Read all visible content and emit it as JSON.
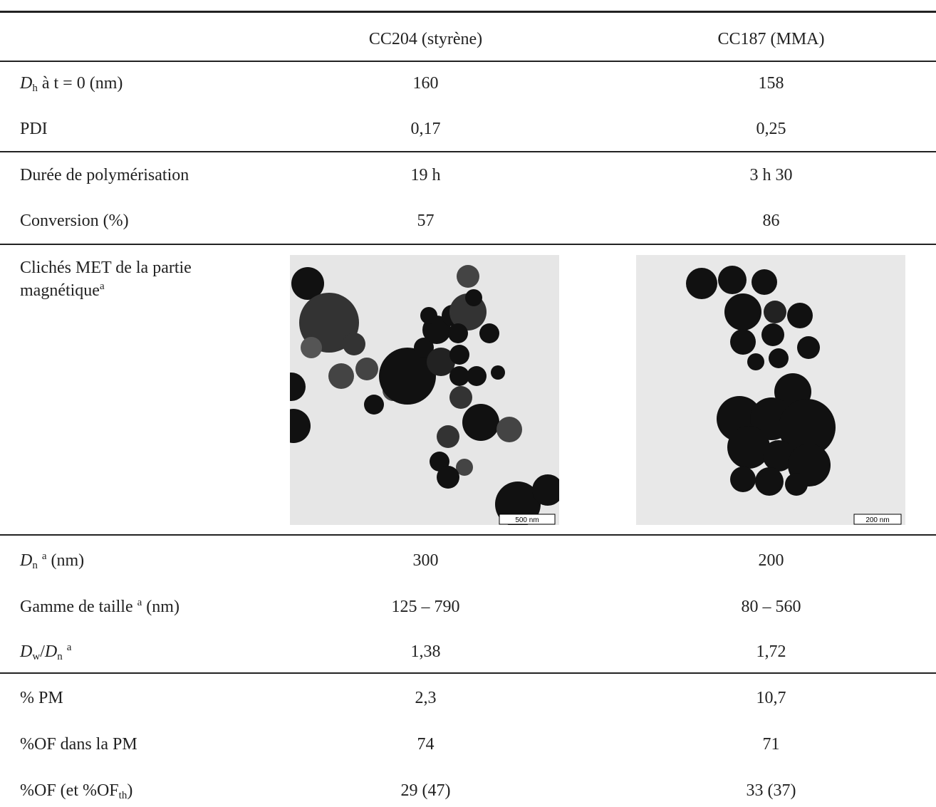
{
  "table": {
    "header": [
      "CC204 (styrène)",
      "CC187 (MMA)"
    ],
    "rows": [
      {
        "label": [
          "D",
          "h",
          " à t = 0 (nm)"
        ],
        "cells": [
          "160",
          "158"
        ]
      },
      {
        "label": [
          "PDI"
        ],
        "cells": [
          "0,17",
          "0,25"
        ]
      },
      {
        "label": [
          "Durée de polymérisation"
        ],
        "cells": [
          "19 h",
          "3 h 30"
        ]
      },
      {
        "label": [
          "Conversion (%)"
        ],
        "cells": [
          "57",
          "86"
        ]
      },
      {
        "label": [
          "Clichés MET de la partie magnétique",
          "a"
        ],
        "scale_bars": [
          "500 nm",
          "200 nm"
        ]
      },
      {
        "label": [
          "D",
          "n",
          "a",
          " (nm)"
        ],
        "cells": [
          "300",
          "200"
        ]
      },
      {
        "label": [
          "Gamme de taille ",
          "a",
          " (nm)"
        ],
        "cells": [
          "125 – 790",
          "80 – 560"
        ]
      },
      {
        "label": [
          "D",
          "w",
          "/",
          "D",
          "n",
          "a"
        ],
        "cells": [
          "1,38",
          "1,72"
        ]
      },
      {
        "label": [
          "% PM"
        ],
        "cells": [
          "2,3",
          "10,7"
        ]
      },
      {
        "label": [
          "%OF dans la PM"
        ],
        "cells": [
          "74",
          "71"
        ]
      },
      {
        "label": [
          "%OF (et %OF",
          "th",
          ")"
        ],
        "cells": [
          "29 (47)",
          "33 (37)"
        ]
      }
    ]
  }
}
